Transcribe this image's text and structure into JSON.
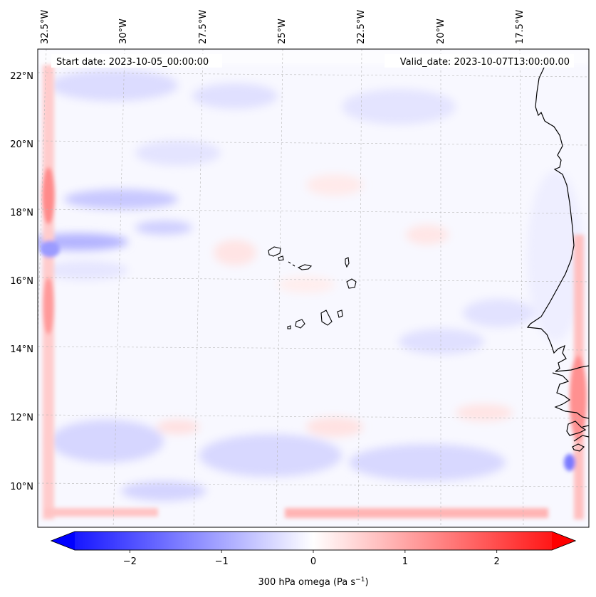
{
  "map": {
    "start_date": "Start date: 2023-10-05_00:00:00",
    "valid_date": "Valid_date: 2023-10-07T13:00:00.00",
    "lon_labels": [
      "32.5°W",
      "30°W",
      "27.5°W",
      "25°W",
      "22.5°W",
      "20°W",
      "17.5°W"
    ],
    "lat_labels": [
      "22°N",
      "20°N",
      "18°N",
      "16°N",
      "14°N",
      "12°N",
      "10°N"
    ],
    "region": "Cape Verde / West Africa coast",
    "field": "300 hPa omega"
  },
  "colorbar": {
    "label": "300 hPa omega (Pa s",
    "label_sup": "−1",
    "label_close": ")",
    "tick_labels": [
      "−2",
      "−1",
      "0",
      "1",
      "2"
    ],
    "ticks": [
      -2,
      -1,
      0,
      1,
      2
    ],
    "range": [
      -2.6,
      2.6
    ],
    "extend": "both",
    "color_low": "#0000ff",
    "color_mid": "#ffffff",
    "color_high": "#ff0000"
  }
}
